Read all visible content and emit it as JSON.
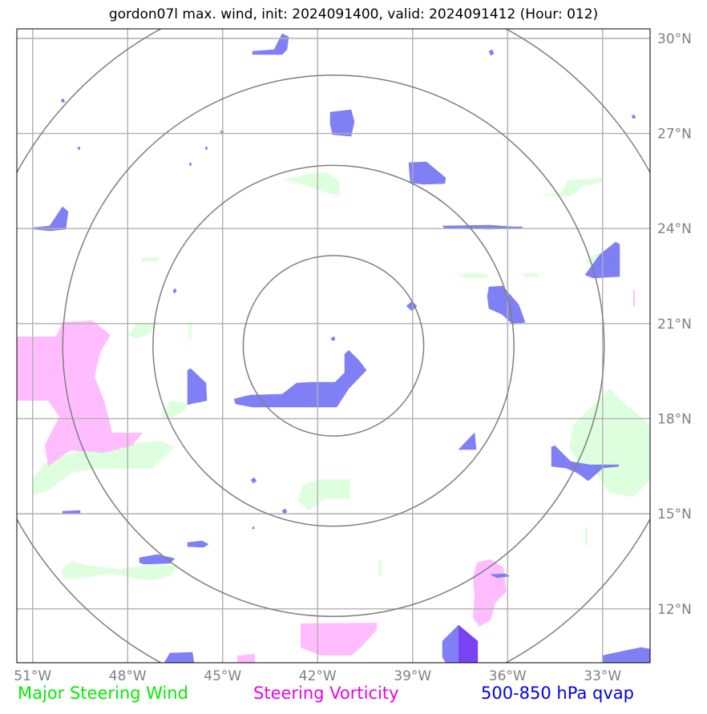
{
  "title": "gordon07l max. wind, init: 2024091400, valid: 2024091412 (Hour: 012)",
  "lon_labels": [
    "51°W",
    "48°W",
    "45°W",
    "42°W",
    "39°W",
    "36°W",
    "33°W"
  ],
  "lat_labels": [
    "30°N",
    "27°N",
    "24°N",
    "21°N",
    "18°N",
    "15°N",
    "12°N"
  ],
  "legend": [
    {
      "label": "Major Steering Wind",
      "color": "#00ee00"
    },
    {
      "label": "Steering Vorticity",
      "color": "#ee00ee"
    },
    {
      "label": "500-850 hPa qvap",
      "color": "#0000ee"
    }
  ],
  "colors": {
    "grid": "#b0b0b0",
    "range_rings": "#7f7f7f",
    "wind_fill": "#dcffdc",
    "vorticity_fill": "#ffbdff",
    "qvap_fill": "#7878f5",
    "qvap_dark": "#7a3cf0"
  },
  "map": {
    "projection": "plate-carree",
    "lon_range": [
      -51.5,
      -31.5
    ],
    "lat_range": [
      10.3,
      30.3
    ],
    "range_ring_center": {
      "lon": -41.5,
      "lat": 20.3
    },
    "range_ring_count": 4
  }
}
